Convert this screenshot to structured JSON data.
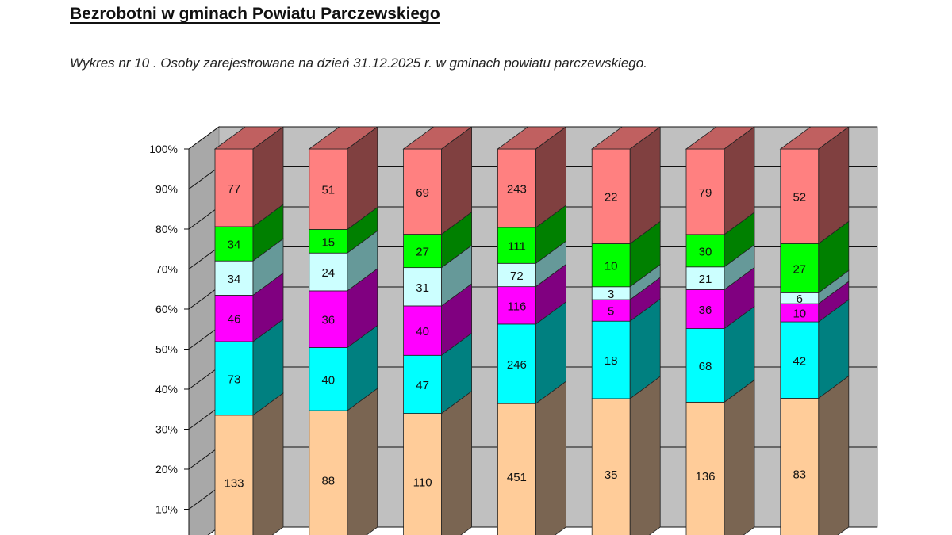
{
  "header": {
    "title": "Bezrobotni w gminach Powiatu Parczewskiego",
    "caption": "Wykres nr 10 . Osoby zarejestrowane na dzień 31.12.2025 r. w gminach powiatu parczewskiego."
  },
  "chart_data": {
    "type": "bar",
    "stacked": "percent",
    "style": "3d",
    "title": "",
    "xlabel": "",
    "ylabel": "",
    "ylim": [
      0,
      100
    ],
    "y_ticks": [
      "10%",
      "20%",
      "30%",
      "40%",
      "50%",
      "60%",
      "70%",
      "80%",
      "90%",
      "100%"
    ],
    "grid": true,
    "categories": [
      "",
      "",
      "",
      "",
      "",
      "",
      ""
    ],
    "series": [
      {
        "values": [
          133,
          88,
          110,
          451,
          35,
          136,
          83
        ],
        "color": "#FFCC99",
        "side_color": "#7A6552"
      },
      {
        "values": [
          73,
          40,
          47,
          246,
          18,
          68,
          42
        ],
        "color": "#00FFFF",
        "side_color": "#008080"
      },
      {
        "values": [
          46,
          36,
          40,
          116,
          5,
          36,
          10
        ],
        "color": "#FF00FF",
        "side_color": "#800080"
      },
      {
        "values": [
          34,
          24,
          31,
          72,
          3,
          21,
          6
        ],
        "color": "#CCFFFF",
        "side_color": "#669999"
      },
      {
        "values": [
          34,
          15,
          27,
          111,
          10,
          30,
          27
        ],
        "color": "#00FF00",
        "side_color": "#008000"
      },
      {
        "values": [
          77,
          51,
          69,
          243,
          22,
          79,
          52
        ],
        "color": "#FF8080",
        "side_color": "#804040"
      }
    ]
  }
}
